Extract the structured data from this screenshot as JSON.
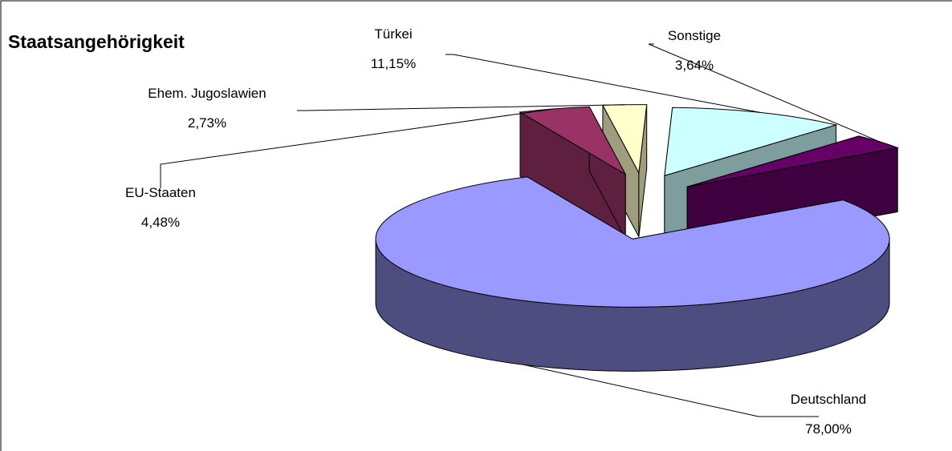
{
  "chart_data": {
    "type": "pie3d",
    "title": "Staatsangehörigkeit",
    "categories": [
      "Deutschland",
      "EU-Staaten",
      "Ehem. Jugoslawien",
      "Türkei",
      "Sonstige"
    ],
    "values": [
      78.0,
      4.48,
      2.73,
      11.15,
      3.64
    ],
    "value_labels": [
      "78,00%",
      "4,48%",
      "2,73%",
      "11,15%",
      "3,64%"
    ],
    "colors": [
      "#9999ff",
      "#993366",
      "#ffffcc",
      "#ccffff",
      "#660066"
    ]
  }
}
